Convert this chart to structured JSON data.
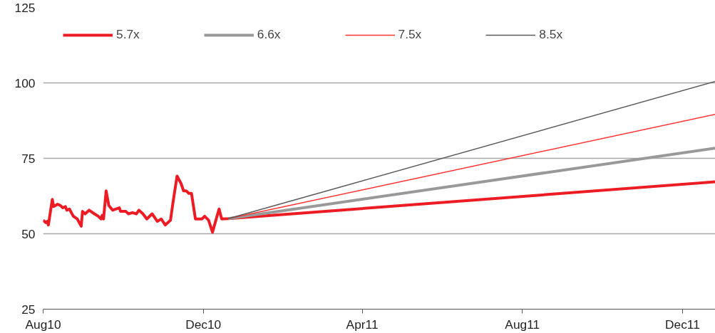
{
  "chart_data": {
    "type": "line",
    "xlim": [
      "2010-08-01",
      "2011-12-26"
    ],
    "xticks": [
      {
        "value": "2010-08-01",
        "label": "Aug10"
      },
      {
        "value": "2010-12-01",
        "label": "Dec10"
      },
      {
        "value": "2011-04-01",
        "label": "Apr11"
      },
      {
        "value": "2011-08-01",
        "label": "Aug11"
      },
      {
        "value": "2011-12-01",
        "label": "Dec11"
      }
    ],
    "ylim": [
      25,
      125
    ],
    "yticks": [
      25,
      50,
      75,
      100,
      125
    ],
    "grid": "y",
    "legend": "top left",
    "marker": "none",
    "line_style": "solid",
    "series": [
      {
        "name": "5.7x",
        "color": "#ed1c24",
        "x": [
          "2010-08-01",
          "2010-08-03",
          "2010-08-04",
          "2010-08-05",
          "2010-08-08",
          "2010-08-09",
          "2010-08-12",
          "2010-08-14",
          "2010-08-16",
          "2010-08-18",
          "2010-08-19",
          "2010-08-21",
          "2010-08-24",
          "2010-08-27",
          "2010-08-30",
          "2010-08-31",
          "2010-09-02",
          "2010-09-05",
          "2010-09-09",
          "2010-09-12",
          "2010-09-14",
          "2010-09-15",
          "2010-09-16",
          "2010-09-18",
          "2010-09-20",
          "2010-09-23",
          "2010-09-28",
          "2010-09-29",
          "2010-10-03",
          "2010-10-05",
          "2010-10-08",
          "2010-10-11",
          "2010-10-13",
          "2010-10-16",
          "2010-10-19",
          "2010-10-23",
          "2010-10-27",
          "2010-10-30",
          "2010-11-02",
          "2010-11-06",
          "2010-11-08",
          "2010-11-11",
          "2010-11-14",
          "2010-11-16",
          "2010-11-18",
          "2010-11-20",
          "2010-11-22",
          "2010-11-25",
          "2010-11-30",
          "2010-12-02",
          "2010-12-05",
          "2010-12-08",
          "2010-12-13",
          "2010-12-15",
          "2010-12-20",
          "2011-12-26"
        ],
        "values": [
          54.5,
          53.7,
          54.1,
          52.9,
          61.4,
          59.0,
          59.8,
          59.4,
          58.6,
          59.0,
          57.8,
          58.2,
          55.8,
          54.9,
          52.5,
          57.4,
          56.6,
          57.8,
          56.6,
          55.8,
          54.9,
          56.1,
          54.9,
          64.2,
          59.4,
          57.8,
          58.6,
          57.4,
          57.4,
          56.6,
          57.0,
          56.6,
          57.8,
          56.6,
          54.9,
          56.6,
          54.1,
          54.9,
          52.9,
          54.5,
          60.6,
          69.1,
          66.7,
          64.2,
          64.2,
          63.4,
          63.4,
          54.9,
          54.9,
          55.8,
          54.5,
          50.5,
          58.2,
          54.9,
          55.0,
          67.2
        ]
      },
      {
        "name": "6.6x",
        "color": "#999999",
        "x": [
          "2010-12-20",
          "2011-12-26"
        ],
        "values": [
          55.0,
          78.4
        ]
      },
      {
        "name": "7.5x",
        "color": "#ff3333",
        "x": [
          "2010-12-20",
          "2011-12-26"
        ],
        "values": [
          55.0,
          89.6
        ]
      },
      {
        "name": "8.5x",
        "color": "#595959",
        "x": [
          "2010-12-20",
          "2011-12-26"
        ],
        "values": [
          55.0,
          100.5
        ]
      }
    ]
  }
}
